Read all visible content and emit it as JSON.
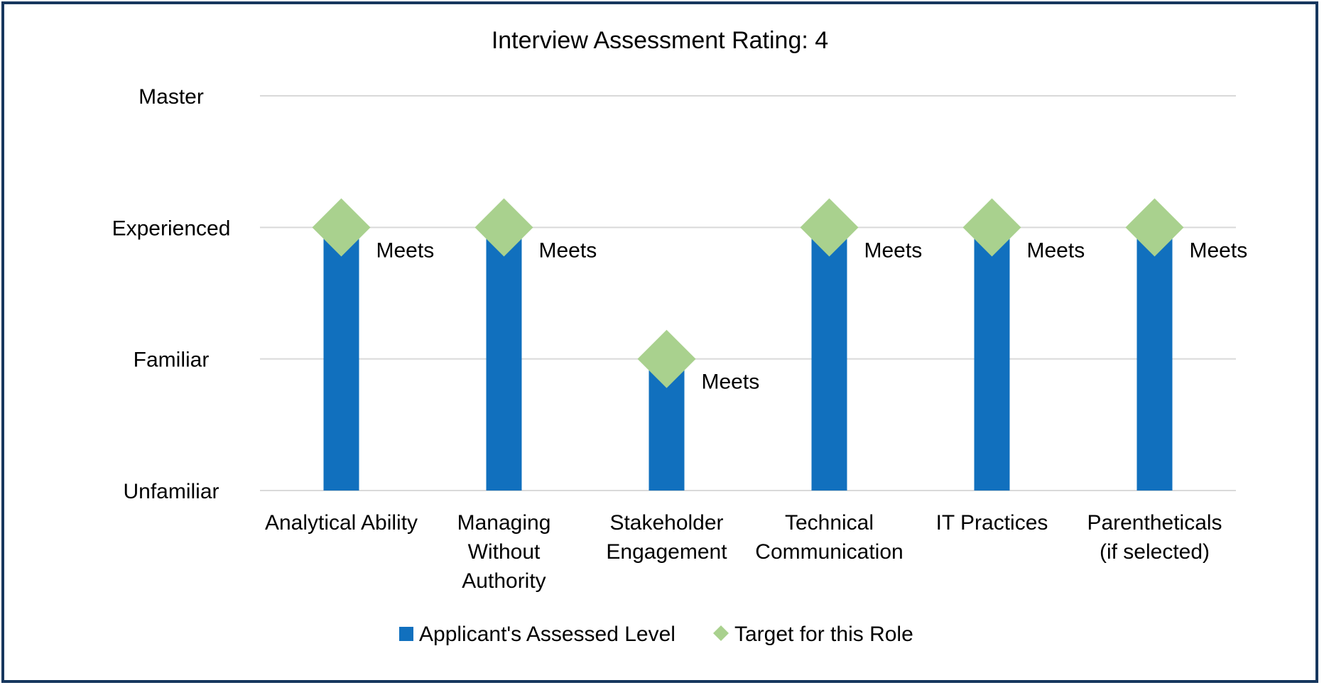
{
  "chart_data": {
    "type": "bar",
    "title": "Interview Assessment Rating: 4",
    "xlabel": "",
    "ylabel": "",
    "y_levels": [
      "Unfamiliar",
      "Familiar",
      "Experienced",
      "Master"
    ],
    "ylim": [
      0,
      3
    ],
    "grid": true,
    "legend_position": "bottom",
    "categories": [
      [
        "Analytical Ability"
      ],
      [
        "Managing",
        "Without",
        "Authority"
      ],
      [
        "Stakeholder",
        "Engagement"
      ],
      [
        "Technical",
        "Communication"
      ],
      [
        "IT Practices"
      ],
      [
        "Parentheticals",
        "(if selected)"
      ]
    ],
    "series": [
      {
        "name": "Applicant's Assessed Level",
        "kind": "bar",
        "color": "#1170be",
        "values": [
          2,
          2,
          1,
          2,
          2,
          2
        ]
      },
      {
        "name": "Target for this Role",
        "kind": "marker",
        "marker": "diamond",
        "color": "#a9d18e",
        "values": [
          2,
          2,
          1,
          2,
          2,
          2
        ]
      }
    ],
    "data_labels": [
      "Meets",
      "Meets",
      "Meets",
      "Meets",
      "Meets",
      "Meets"
    ]
  }
}
